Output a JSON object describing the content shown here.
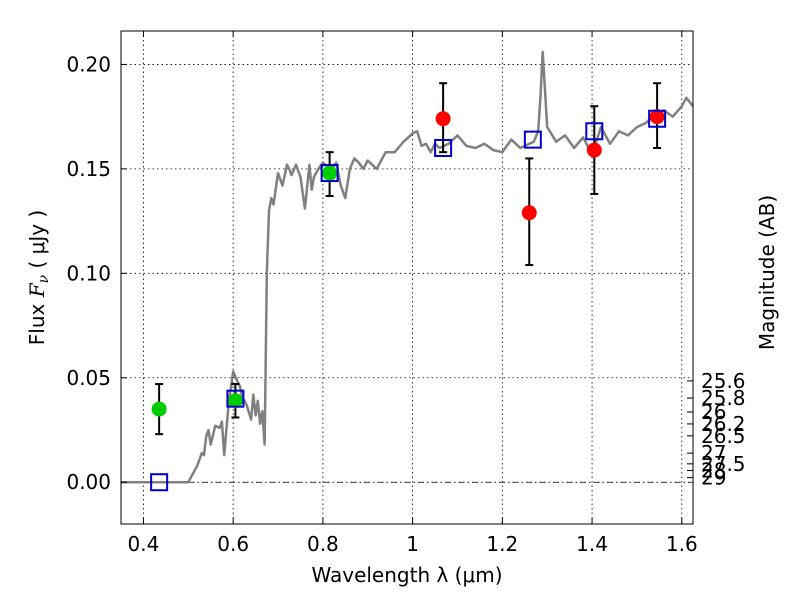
{
  "chart_data": {
    "type": "scatter",
    "xlabel": "Wavelength  λ (μm)",
    "ylabel": {
      "prefix": "Flux  ",
      "var": "F",
      "sub": "ν",
      "unit": "  ( μJy )"
    },
    "right_label": "Magnitude (AB)",
    "xlim": [
      0.35,
      1.625
    ],
    "ylim": [
      -0.02,
      0.216
    ],
    "x_ticks": [
      {
        "v": 0.4,
        "label": "0.4"
      },
      {
        "v": 0.6,
        "label": "0.6"
      },
      {
        "v": 0.8,
        "label": "0.8"
      },
      {
        "v": 1.0,
        "label": "1"
      },
      {
        "v": 1.2,
        "label": "1.2"
      },
      {
        "v": 1.4,
        "label": "1.4"
      },
      {
        "v": 1.6,
        "label": "1.6"
      }
    ],
    "y_ticks": [
      {
        "v": 0.0,
        "label": "0.00"
      },
      {
        "v": 0.05,
        "label": "0.05"
      },
      {
        "v": 0.1,
        "label": "0.10"
      },
      {
        "v": 0.15,
        "label": "0.15"
      },
      {
        "v": 0.2,
        "label": "0.20"
      }
    ],
    "mag_ticks": [
      {
        "v": 0.0485,
        "label": "25.6"
      },
      {
        "v": 0.0403,
        "label": "25.8"
      },
      {
        "v": 0.0336,
        "label": "26"
      },
      {
        "v": 0.0279,
        "label": "26.2"
      },
      {
        "v": 0.0222,
        "label": "26.5"
      },
      {
        "v": 0.0139,
        "label": "27"
      },
      {
        "v": 0.0088,
        "label": "27.5"
      },
      {
        "v": 0.0056,
        "label": "28"
      },
      {
        "v": 0.0022,
        "label": "29"
      }
    ],
    "series": [
      {
        "name": "model_spectrum",
        "kind": "line",
        "color": "#808080",
        "x": [
          0.35,
          0.45,
          0.5,
          0.52,
          0.53,
          0.535,
          0.54,
          0.545,
          0.55,
          0.56,
          0.57,
          0.575,
          0.58,
          0.59,
          0.6,
          0.61,
          0.615,
          0.62,
          0.63,
          0.64,
          0.645,
          0.65,
          0.655,
          0.66,
          0.665,
          0.67,
          0.672,
          0.675,
          0.68,
          0.685,
          0.69,
          0.7,
          0.71,
          0.72,
          0.725,
          0.73,
          0.74,
          0.75,
          0.76,
          0.77,
          0.775,
          0.78,
          0.79,
          0.8,
          0.81,
          0.82,
          0.83,
          0.84,
          0.85,
          0.86,
          0.87,
          0.88,
          0.89,
          0.9,
          0.92,
          0.94,
          0.96,
          0.98,
          1.0,
          1.01,
          1.02,
          1.03,
          1.04,
          1.05,
          1.06,
          1.08,
          1.1,
          1.12,
          1.14,
          1.16,
          1.18,
          1.2,
          1.22,
          1.24,
          1.26,
          1.27,
          1.28,
          1.285,
          1.29,
          1.3,
          1.32,
          1.34,
          1.36,
          1.38,
          1.4,
          1.42,
          1.44,
          1.46,
          1.48,
          1.5,
          1.52,
          1.54,
          1.56,
          1.58,
          1.6,
          1.61,
          1.625
        ],
        "y": [
          0,
          0,
          0,
          0.008,
          0.014,
          0.013,
          0.022,
          0.025,
          0.018,
          0.027,
          0.026,
          0.029,
          0.013,
          0.038,
          0.053,
          0.048,
          0.046,
          0.041,
          0.037,
          0.03,
          0.042,
          0.032,
          0.039,
          0.028,
          0.034,
          0.018,
          0.05,
          0.1,
          0.13,
          0.136,
          0.133,
          0.148,
          0.142,
          0.152,
          0.15,
          0.147,
          0.152,
          0.146,
          0.131,
          0.152,
          0.14,
          0.146,
          0.15,
          0.153,
          0.151,
          0.15,
          0.153,
          0.142,
          0.136,
          0.15,
          0.155,
          0.153,
          0.15,
          0.154,
          0.15,
          0.158,
          0.158,
          0.163,
          0.167,
          0.168,
          0.161,
          0.162,
          0.158,
          0.162,
          0.16,
          0.162,
          0.166,
          0.161,
          0.16,
          0.162,
          0.159,
          0.158,
          0.164,
          0.16,
          0.162,
          0.163,
          0.168,
          0.185,
          0.206,
          0.17,
          0.163,
          0.166,
          0.16,
          0.165,
          0.157,
          0.17,
          0.162,
          0.168,
          0.166,
          0.17,
          0.172,
          0.176,
          0.178,
          0.175,
          0.18,
          0.184,
          0.18
        ]
      },
      {
        "name": "green_observed",
        "kind": "points",
        "color": "#00cc00",
        "points": [
          {
            "x": 0.435,
            "y": 0.035,
            "err": [
              0.023,
              0.047
            ]
          },
          {
            "x": 0.605,
            "y": 0.039,
            "err": [
              0.031,
              0.047
            ]
          },
          {
            "x": 0.815,
            "y": 0.148,
            "err": [
              0.137,
              0.158
            ]
          }
        ]
      },
      {
        "name": "red_observed",
        "kind": "points",
        "color": "#ff0000",
        "points": [
          {
            "x": 1.068,
            "y": 0.174,
            "err": [
              0.158,
              0.191
            ]
          },
          {
            "x": 1.26,
            "y": 0.129,
            "err": [
              0.104,
              0.155
            ]
          },
          {
            "x": 1.405,
            "y": 0.159,
            "err": [
              0.138,
              0.18
            ]
          },
          {
            "x": 1.545,
            "y": 0.175,
            "err": [
              0.16,
              0.191
            ]
          }
        ]
      },
      {
        "name": "model_bandpass",
        "kind": "squares",
        "color": "#0000cc",
        "points": [
          {
            "x": 0.435,
            "y": 0.0
          },
          {
            "x": 0.605,
            "y": 0.04
          },
          {
            "x": 0.815,
            "y": 0.148
          },
          {
            "x": 1.068,
            "y": 0.16
          },
          {
            "x": 1.268,
            "y": 0.164
          },
          {
            "x": 1.405,
            "y": 0.168
          },
          {
            "x": 1.545,
            "y": 0.174
          }
        ]
      }
    ]
  }
}
